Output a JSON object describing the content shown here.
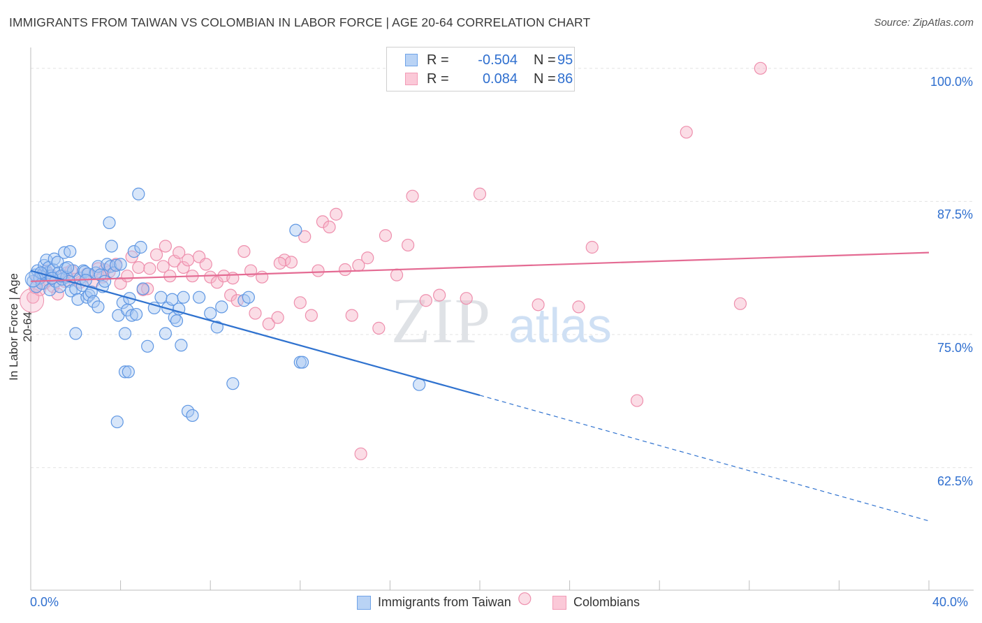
{
  "title": "IMMIGRANTS FROM TAIWAN VS COLOMBIAN IN LABOR FORCE | AGE 20-64 CORRELATION CHART",
  "source": "Source: ZipAtlas.com",
  "watermark": {
    "zip": "ZIP",
    "atlas": "atlas"
  },
  "legend_top": {
    "r_label": "R =",
    "n_label": "N =",
    "series": [
      {
        "r": "-0.504",
        "n": "95"
      },
      {
        "r": "0.084",
        "n": "86"
      }
    ]
  },
  "legend_bottom": [
    "Immigrants from Taiwan",
    "Colombians"
  ],
  "chart_data": {
    "type": "scatter",
    "title": "IMMIGRANTS FROM TAIWAN VS COLOMBIAN IN LABOR FORCE | AGE 20-64 CORRELATION CHART",
    "xlabel": "",
    "ylabel": "In Labor Force | Age 20-64",
    "xlim": [
      0,
      40
    ],
    "ylim": [
      51,
      101.3
    ],
    "x_tick_labels": [
      "0.0%",
      "40.0%"
    ],
    "y_ticks": [
      62.5,
      75.0,
      87.5,
      100.0
    ],
    "y_tick_labels": [
      "62.5%",
      "75.0%",
      "87.5%",
      "100.0%"
    ],
    "grid": "horizontal dashed",
    "legend_position": "top-center",
    "colors": {
      "taiwan": "#6fa3e8",
      "colombians": "#f29bb6",
      "taiwan_line": "#2f72cf",
      "colombians_line": "#e46b93"
    },
    "series": [
      {
        "name": "Immigrants from Taiwan",
        "R": -0.504,
        "N": 95,
        "trend": {
          "x0": 0.0,
          "y0": 81.0,
          "x1": 20.0,
          "y1": 69.3,
          "dash_to_x": 40.0,
          "dash_to_y": 57.5
        },
        "points": [
          [
            0.1,
            80.0
          ],
          [
            0.2,
            80.6
          ],
          [
            0.25,
            79.5
          ],
          [
            0.3,
            81.0
          ],
          [
            0.4,
            80.3
          ],
          [
            0.5,
            79.8
          ],
          [
            0.55,
            80.7
          ],
          [
            0.6,
            81.5
          ],
          [
            0.7,
            82.0
          ],
          [
            0.75,
            80.8
          ],
          [
            0.8,
            81.3
          ],
          [
            0.85,
            79.2
          ],
          [
            0.9,
            80.5
          ],
          [
            1.0,
            81.1
          ],
          [
            1.05,
            82.1
          ],
          [
            1.1,
            80.0
          ],
          [
            1.2,
            81.8
          ],
          [
            1.25,
            80.8
          ],
          [
            1.3,
            79.5
          ],
          [
            1.4,
            80.2
          ],
          [
            1.5,
            82.7
          ],
          [
            1.55,
            81.2
          ],
          [
            1.6,
            80.4
          ],
          [
            1.7,
            80.0
          ],
          [
            1.75,
            82.8
          ],
          [
            1.8,
            79.1
          ],
          [
            1.9,
            81.0
          ],
          [
            2.0,
            79.3
          ],
          [
            2.1,
            78.3
          ],
          [
            2.2,
            80.3
          ],
          [
            2.3,
            79.6
          ],
          [
            2.35,
            81.0
          ],
          [
            2.4,
            80.9
          ],
          [
            2.5,
            78.5
          ],
          [
            2.55,
            80.7
          ],
          [
            2.6,
            78.7
          ],
          [
            2.7,
            79.0
          ],
          [
            2.8,
            78.1
          ],
          [
            2.9,
            80.8
          ],
          [
            3.0,
            81.4
          ],
          [
            3.1,
            80.6
          ],
          [
            3.2,
            79.5
          ],
          [
            3.3,
            80.0
          ],
          [
            3.4,
            81.6
          ],
          [
            3.5,
            85.5
          ],
          [
            3.55,
            81.4
          ],
          [
            3.6,
            83.3
          ],
          [
            3.7,
            80.8
          ],
          [
            3.8,
            81.5
          ],
          [
            3.9,
            76.8
          ],
          [
            4.0,
            81.6
          ],
          [
            4.1,
            78.0
          ],
          [
            4.2,
            75.1
          ],
          [
            4.3,
            77.3
          ],
          [
            4.4,
            78.4
          ],
          [
            4.5,
            76.8
          ],
          [
            4.6,
            82.8
          ],
          [
            4.7,
            76.9
          ],
          [
            4.8,
            88.2
          ],
          [
            4.9,
            83.2
          ],
          [
            5.0,
            79.3
          ],
          [
            5.2,
            73.9
          ],
          [
            5.5,
            77.5
          ],
          [
            5.8,
            78.5
          ],
          [
            6.0,
            75.1
          ],
          [
            6.1,
            77.5
          ],
          [
            6.3,
            78.3
          ],
          [
            6.4,
            76.6
          ],
          [
            6.5,
            76.3
          ],
          [
            6.6,
            77.4
          ],
          [
            6.7,
            74.0
          ],
          [
            6.8,
            78.5
          ],
          [
            7.0,
            67.8
          ],
          [
            7.2,
            67.4
          ],
          [
            7.5,
            78.5
          ],
          [
            8.0,
            77.0
          ],
          [
            8.3,
            75.7
          ],
          [
            8.5,
            77.6
          ],
          [
            9.0,
            70.4
          ],
          [
            9.5,
            78.2
          ],
          [
            9.7,
            78.5
          ],
          [
            11.8,
            84.8
          ],
          [
            12.0,
            72.4
          ],
          [
            12.1,
            72.4
          ],
          [
            17.3,
            70.3
          ],
          [
            2.0,
            75.1
          ],
          [
            3.0,
            77.6
          ],
          [
            4.2,
            71.5
          ],
          [
            4.35,
            71.5
          ],
          [
            3.85,
            66.8
          ],
          [
            1.35,
            80.5
          ],
          [
            0.95,
            80.3
          ],
          [
            1.65,
            81.3
          ],
          [
            2.45,
            80.1
          ],
          [
            0.45,
            80.8
          ]
        ]
      },
      {
        "name": "Colombians",
        "R": 0.084,
        "N": 86,
        "trend": {
          "x0": 0.0,
          "y0": 80.0,
          "x1": 40.0,
          "y1": 82.7
        },
        "points": [
          [
            0.1,
            78.5
          ],
          [
            0.2,
            79.4
          ],
          [
            0.3,
            80.2
          ],
          [
            0.4,
            79.2
          ],
          [
            0.5,
            80.5
          ],
          [
            0.6,
            79.8
          ],
          [
            0.7,
            81.0
          ],
          [
            0.8,
            80.1
          ],
          [
            0.9,
            80.6
          ],
          [
            1.0,
            79.5
          ],
          [
            1.2,
            78.8
          ],
          [
            1.4,
            80.4
          ],
          [
            1.6,
            80.8
          ],
          [
            1.8,
            81.0
          ],
          [
            2.0,
            80.2
          ],
          [
            2.2,
            79.9
          ],
          [
            2.5,
            80.7
          ],
          [
            2.8,
            80.0
          ],
          [
            3.0,
            81.2
          ],
          [
            3.2,
            80.4
          ],
          [
            3.5,
            80.9
          ],
          [
            3.8,
            81.6
          ],
          [
            4.0,
            79.8
          ],
          [
            4.3,
            80.5
          ],
          [
            4.5,
            82.3
          ],
          [
            4.8,
            81.3
          ],
          [
            5.0,
            79.2
          ],
          [
            5.3,
            81.2
          ],
          [
            5.6,
            82.5
          ],
          [
            5.9,
            81.4
          ],
          [
            6.0,
            83.3
          ],
          [
            6.2,
            80.5
          ],
          [
            6.4,
            81.9
          ],
          [
            6.6,
            82.7
          ],
          [
            6.8,
            81.3
          ],
          [
            7.0,
            82.0
          ],
          [
            7.2,
            80.5
          ],
          [
            7.5,
            82.3
          ],
          [
            7.8,
            81.6
          ],
          [
            8.0,
            80.4
          ],
          [
            8.3,
            79.9
          ],
          [
            8.6,
            80.5
          ],
          [
            8.9,
            78.7
          ],
          [
            9.2,
            78.2
          ],
          [
            9.5,
            82.8
          ],
          [
            9.8,
            81.0
          ],
          [
            10.0,
            77.0
          ],
          [
            10.3,
            80.4
          ],
          [
            10.6,
            76.0
          ],
          [
            11.0,
            76.6
          ],
          [
            11.3,
            82.0
          ],
          [
            11.6,
            81.8
          ],
          [
            12.0,
            78.0
          ],
          [
            12.2,
            84.2
          ],
          [
            12.5,
            76.8
          ],
          [
            12.8,
            81.0
          ],
          [
            13.0,
            85.6
          ],
          [
            13.3,
            85.1
          ],
          [
            13.6,
            86.3
          ],
          [
            14.0,
            81.1
          ],
          [
            14.3,
            76.8
          ],
          [
            14.6,
            81.5
          ],
          [
            15.0,
            82.2
          ],
          [
            15.5,
            75.6
          ],
          [
            15.8,
            84.3
          ],
          [
            16.3,
            80.6
          ],
          [
            16.8,
            83.4
          ],
          [
            17.0,
            88.0
          ],
          [
            17.6,
            78.2
          ],
          [
            18.2,
            78.7
          ],
          [
            19.4,
            78.4
          ],
          [
            20.0,
            88.2
          ],
          [
            22.6,
            77.8
          ],
          [
            24.4,
            77.6
          ],
          [
            25.0,
            83.2
          ],
          [
            27.0,
            68.8
          ],
          [
            29.2,
            94.0
          ],
          [
            31.6,
            77.9
          ],
          [
            32.5,
            100.0
          ],
          [
            14.7,
            63.8
          ],
          [
            22.0,
            50.2
          ],
          [
            11.1,
            81.7
          ],
          [
            9.0,
            80.3
          ],
          [
            5.2,
            79.3
          ],
          [
            3.3,
            81.1
          ],
          [
            1.5,
            80.0
          ]
        ]
      }
    ]
  }
}
